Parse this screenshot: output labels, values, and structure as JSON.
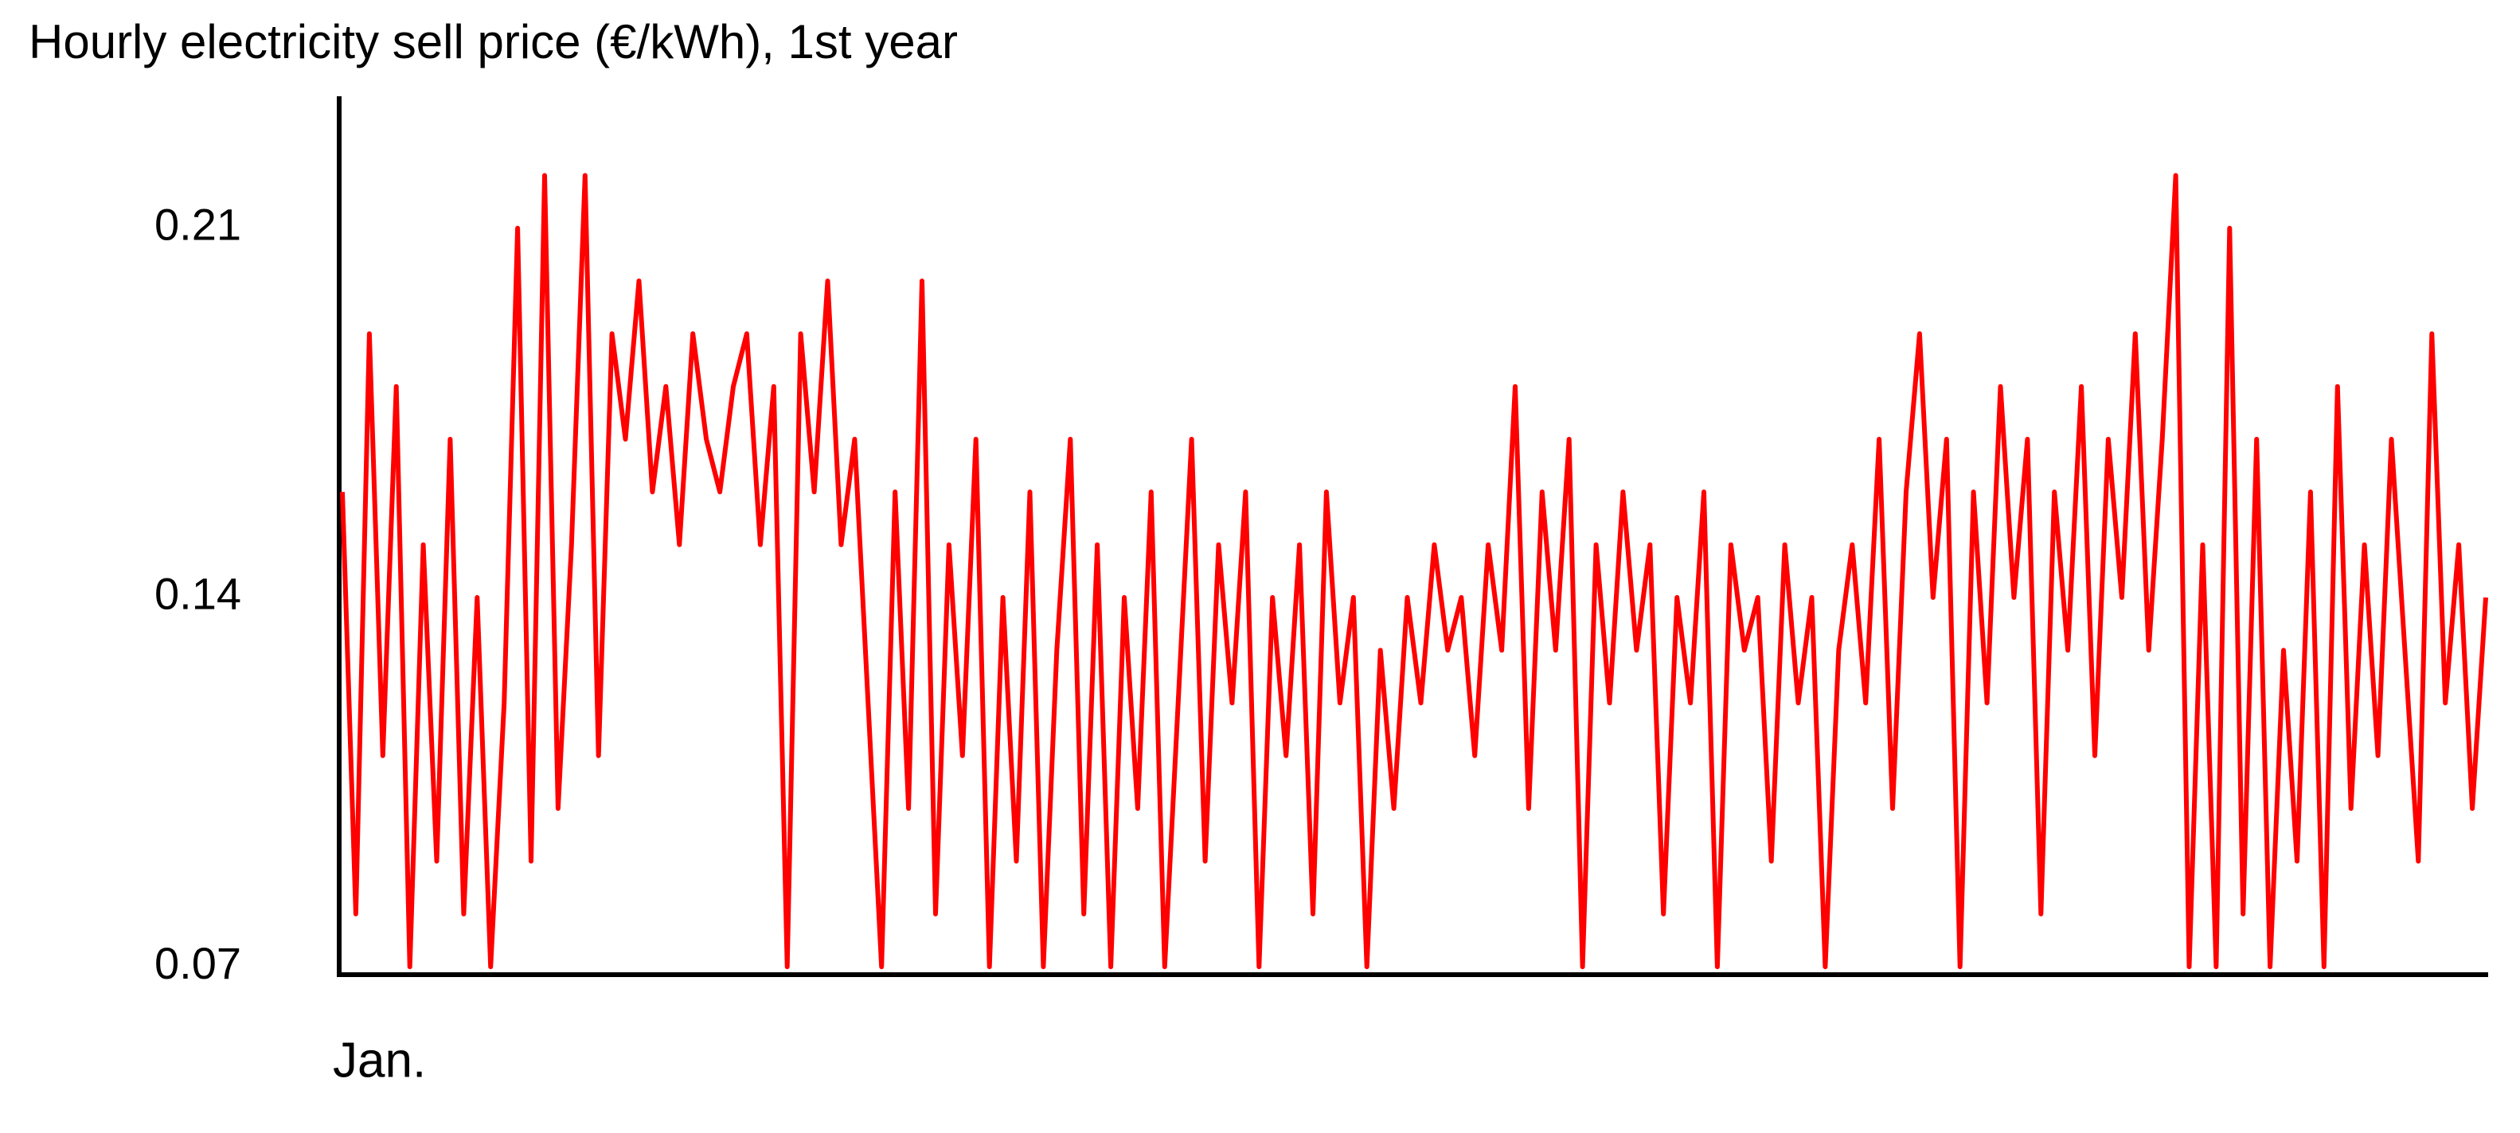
{
  "chart_data": {
    "type": "line",
    "title": "Hourly electricity sell price (€/kWh), 1st year",
    "color": "#ff0000",
    "ylim": [
      0.0685,
      0.235
    ],
    "yticks": [
      0.07,
      0.14,
      0.21
    ],
    "grid": false,
    "categories": [
      "Jan.",
      null,
      null,
      null,
      null,
      null,
      null,
      null,
      null,
      null,
      null,
      null,
      null,
      null,
      null,
      null,
      null,
      null,
      null,
      null,
      null,
      null,
      null,
      null,
      null,
      null,
      null,
      null,
      null,
      null,
      null,
      null,
      null,
      null,
      null,
      null,
      null,
      null,
      null,
      null,
      null,
      null,
      null,
      null,
      null,
      null,
      null,
      null,
      null,
      null,
      null,
      null,
      null,
      null,
      null,
      null,
      null,
      null,
      null,
      null,
      null,
      null,
      null,
      null,
      null,
      null,
      null,
      null,
      null,
      null,
      null,
      null,
      null,
      null,
      null,
      null,
      null,
      null,
      null,
      null,
      null,
      null,
      null,
      null,
      null,
      null,
      null,
      null,
      null,
      null,
      null,
      null,
      null,
      null,
      null,
      null,
      null,
      null,
      null,
      null,
      null,
      null,
      null,
      null,
      null,
      null,
      null,
      null,
      null,
      null,
      null,
      null,
      null,
      null,
      null,
      null,
      null,
      null,
      null,
      null,
      null,
      null,
      null,
      null,
      null,
      null,
      null,
      null,
      null,
      null,
      null,
      null,
      null,
      null,
      null,
      null,
      null,
      null,
      null,
      null,
      null,
      null,
      null,
      null,
      null,
      null,
      null,
      null,
      null,
      null,
      null,
      null,
      null,
      null,
      null,
      null,
      null,
      null,
      null,
      null
    ],
    "values": [
      0.16,
      0.08,
      0.19,
      0.11,
      0.18,
      0.07,
      0.15,
      0.09,
      0.17,
      0.08,
      0.14,
      0.07,
      0.12,
      0.21,
      0.09,
      0.22,
      0.1,
      0.15,
      0.22,
      0.11,
      0.19,
      0.17,
      0.2,
      0.16,
      0.18,
      0.15,
      0.19,
      0.17,
      0.16,
      0.18,
      0.19,
      0.15,
      0.18,
      0.07,
      0.19,
      0.16,
      0.2,
      0.15,
      0.17,
      0.12,
      0.07,
      0.16,
      0.1,
      0.2,
      0.08,
      0.15,
      0.11,
      0.17,
      0.07,
      0.14,
      0.09,
      0.16,
      0.07,
      0.13,
      0.17,
      0.08,
      0.15,
      0.07,
      0.14,
      0.1,
      0.16,
      0.07,
      0.12,
      0.17,
      0.09,
      0.15,
      0.12,
      0.16,
      0.07,
      0.14,
      0.11,
      0.15,
      0.08,
      0.16,
      0.12,
      0.14,
      0.07,
      0.13,
      0.1,
      0.14,
      0.12,
      0.15,
      0.13,
      0.14,
      0.11,
      0.15,
      0.13,
      0.18,
      0.1,
      0.16,
      0.13,
      0.17,
      0.07,
      0.15,
      0.12,
      0.16,
      0.13,
      0.15,
      0.08,
      0.14,
      0.12,
      0.16,
      0.07,
      0.15,
      0.13,
      0.14,
      0.09,
      0.15,
      0.12,
      0.14,
      0.07,
      0.13,
      0.15,
      0.12,
      0.17,
      0.1,
      0.16,
      0.19,
      0.14,
      0.17,
      0.07,
      0.16,
      0.12,
      0.18,
      0.14,
      0.17,
      0.08,
      0.16,
      0.13,
      0.18,
      0.11,
      0.17,
      0.14,
      0.19,
      0.13,
      0.17,
      0.22,
      0.07,
      0.15,
      0.07,
      0.21,
      0.08,
      0.17,
      0.07,
      0.13,
      0.09,
      0.16,
      0.07,
      0.18,
      0.1,
      0.15,
      0.11,
      0.17,
      0.13,
      0.09,
      0.19,
      0.12,
      0.15,
      0.1,
      0.14
    ]
  }
}
